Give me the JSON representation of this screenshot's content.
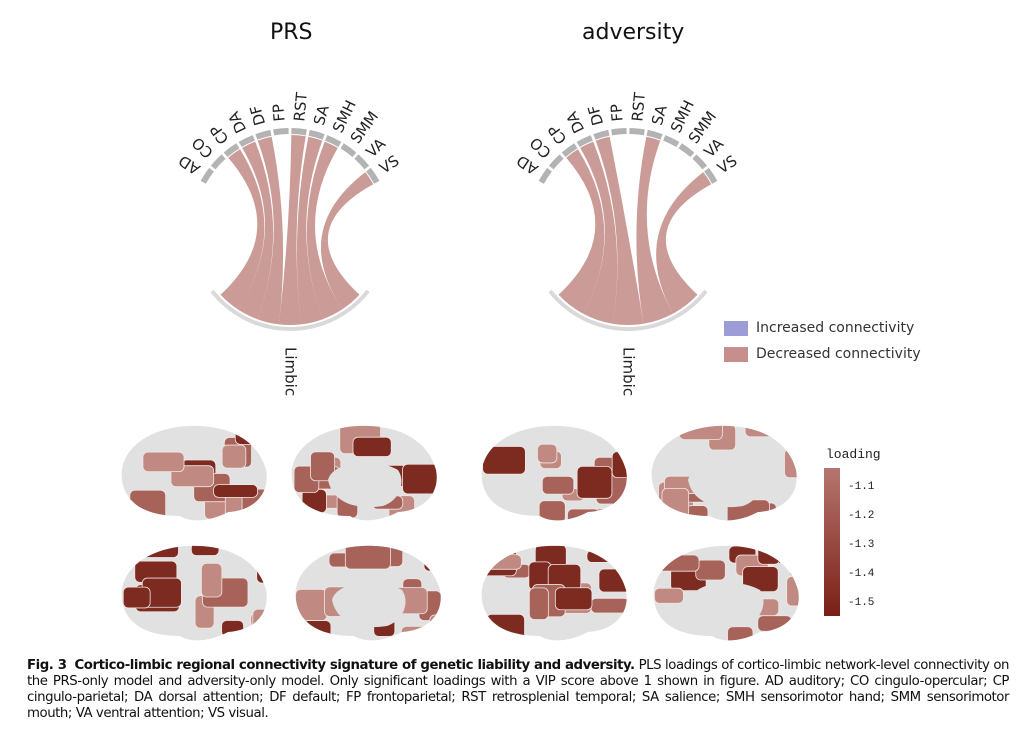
{
  "figure": {
    "panels": [
      {
        "title": "PRS",
        "target_label": "Limbic",
        "networks": [
          "AD",
          "CO",
          "CP",
          "DA",
          "DF",
          "FP",
          "RST",
          "SA",
          "SMH",
          "SMM",
          "VA",
          "VS"
        ],
        "connections": [
          {
            "source": "CP",
            "target": "Limbic",
            "direction": "decreased"
          },
          {
            "source": "DA",
            "target": "Limbic",
            "direction": "decreased"
          },
          {
            "source": "DF",
            "target": "Limbic",
            "direction": "decreased"
          },
          {
            "source": "RST",
            "target": "Limbic",
            "direction": "decreased"
          },
          {
            "source": "SA",
            "target": "Limbic",
            "direction": "decreased"
          },
          {
            "source": "SMH",
            "target": "Limbic",
            "direction": "decreased"
          },
          {
            "source": "VS",
            "target": "Limbic",
            "direction": "decreased"
          }
        ]
      },
      {
        "title": "adversity",
        "target_label": "Limbic",
        "networks": [
          "AD",
          "CO",
          "CP",
          "DA",
          "DF",
          "FP",
          "RST",
          "SA",
          "SMH",
          "SMM",
          "VA",
          "VS"
        ],
        "connections": [
          {
            "source": "CP",
            "target": "Limbic",
            "direction": "decreased"
          },
          {
            "source": "DA",
            "target": "Limbic",
            "direction": "decreased"
          },
          {
            "source": "DF",
            "target": "Limbic",
            "direction": "decreased"
          },
          {
            "source": "SA",
            "target": "Limbic",
            "direction": "decreased"
          },
          {
            "source": "VS",
            "target": "Limbic",
            "direction": "decreased"
          }
        ]
      }
    ],
    "legend": [
      {
        "label": "Increased connectivity",
        "color": "#9c9dd6"
      },
      {
        "label": "Decreased connectivity",
        "color": "#c48f8d"
      }
    ],
    "colorbar": {
      "title": "loading",
      "ticks": [
        "-1.1",
        "-1.2",
        "-1.3",
        "-1.4",
        "-1.5"
      ],
      "range": [
        -1.05,
        -1.55
      ],
      "color_low": "#b5766f",
      "color_high": "#7a1f15"
    },
    "brain_views": [
      "PRS lateral",
      "PRS medial",
      "adversity lateral",
      "adversity medial"
    ],
    "caption": {
      "label": "Fig. 3",
      "title": "Cortico-limbic regional connectivity signature of genetic liability and adversity.",
      "body": "PLS loadings of cortico-limbic network-level connectivity on the PRS-only model and adversity-only model. Only significant loadings with a VIP score above 1 shown in figure. AD auditory; CO cingulo-opercular; CP cingulo-parietal; DA dorsal attention; DF default; FP frontoparietal; RST retrosplenial temporal; SA salience; SMH sensorimotor hand; SMM sensorimotor mouth; VA ventral attention; VS visual."
    }
  },
  "colors": {
    "chord": "#a85852",
    "segment": "#b3b3b3",
    "limbic_arc": "#d9d9d9",
    "brain_base": "#e1e1e1",
    "region_light": "#c08a82",
    "region_mid": "#a7625a",
    "region_dark": "#7d2a20"
  }
}
